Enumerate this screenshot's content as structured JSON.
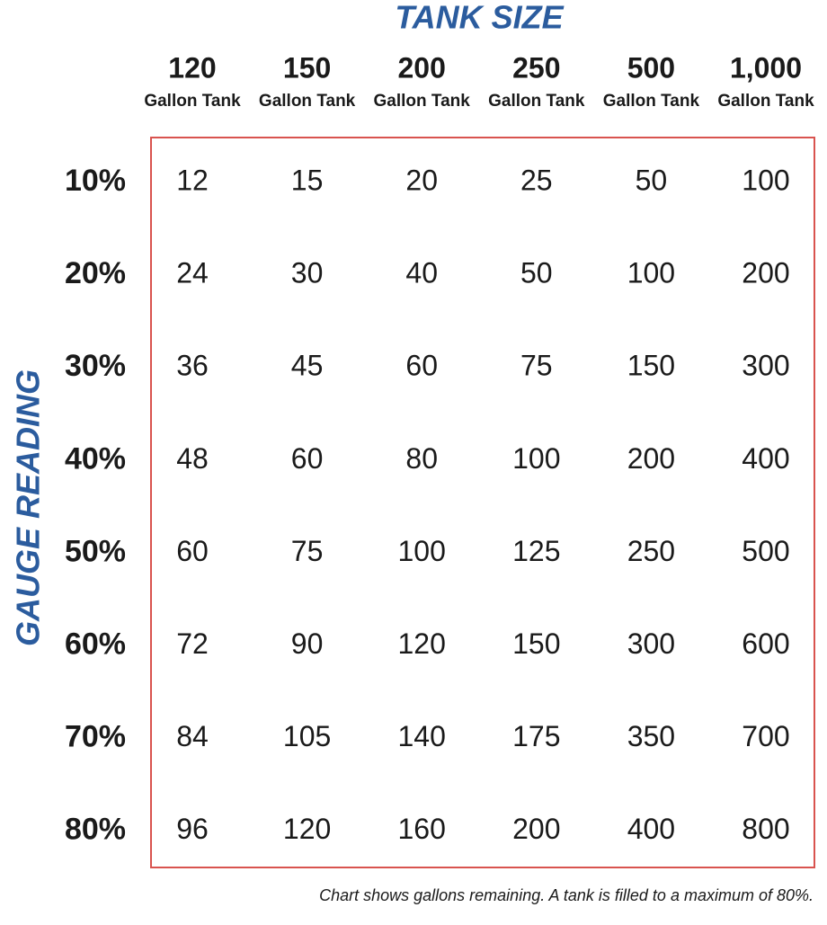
{
  "header": {
    "title": "TANK SIZE",
    "side_label": "GAUGE READING"
  },
  "table": {
    "columns": [
      {
        "size": "120",
        "unit": "Gallon Tank"
      },
      {
        "size": "150",
        "unit": "Gallon Tank"
      },
      {
        "size": "200",
        "unit": "Gallon Tank"
      },
      {
        "size": "250",
        "unit": "Gallon Tank"
      },
      {
        "size": "500",
        "unit": "Gallon Tank"
      },
      {
        "size": "1,000",
        "unit": "Gallon Tank"
      }
    ],
    "row_labels": [
      "10%",
      "20%",
      "30%",
      "40%",
      "50%",
      "60%",
      "70%",
      "80%"
    ],
    "rows": [
      [
        12,
        15,
        20,
        25,
        50,
        100
      ],
      [
        24,
        30,
        40,
        50,
        100,
        200
      ],
      [
        36,
        45,
        60,
        75,
        150,
        300
      ],
      [
        48,
        60,
        80,
        100,
        200,
        400
      ],
      [
        60,
        75,
        100,
        125,
        250,
        500
      ],
      [
        72,
        90,
        120,
        150,
        300,
        600
      ],
      [
        84,
        105,
        140,
        175,
        350,
        700
      ],
      [
        96,
        120,
        160,
        200,
        400,
        800
      ]
    ]
  },
  "footnote": "Chart shows gallons remaining. A tank is filled to a maximum of 80%."
}
